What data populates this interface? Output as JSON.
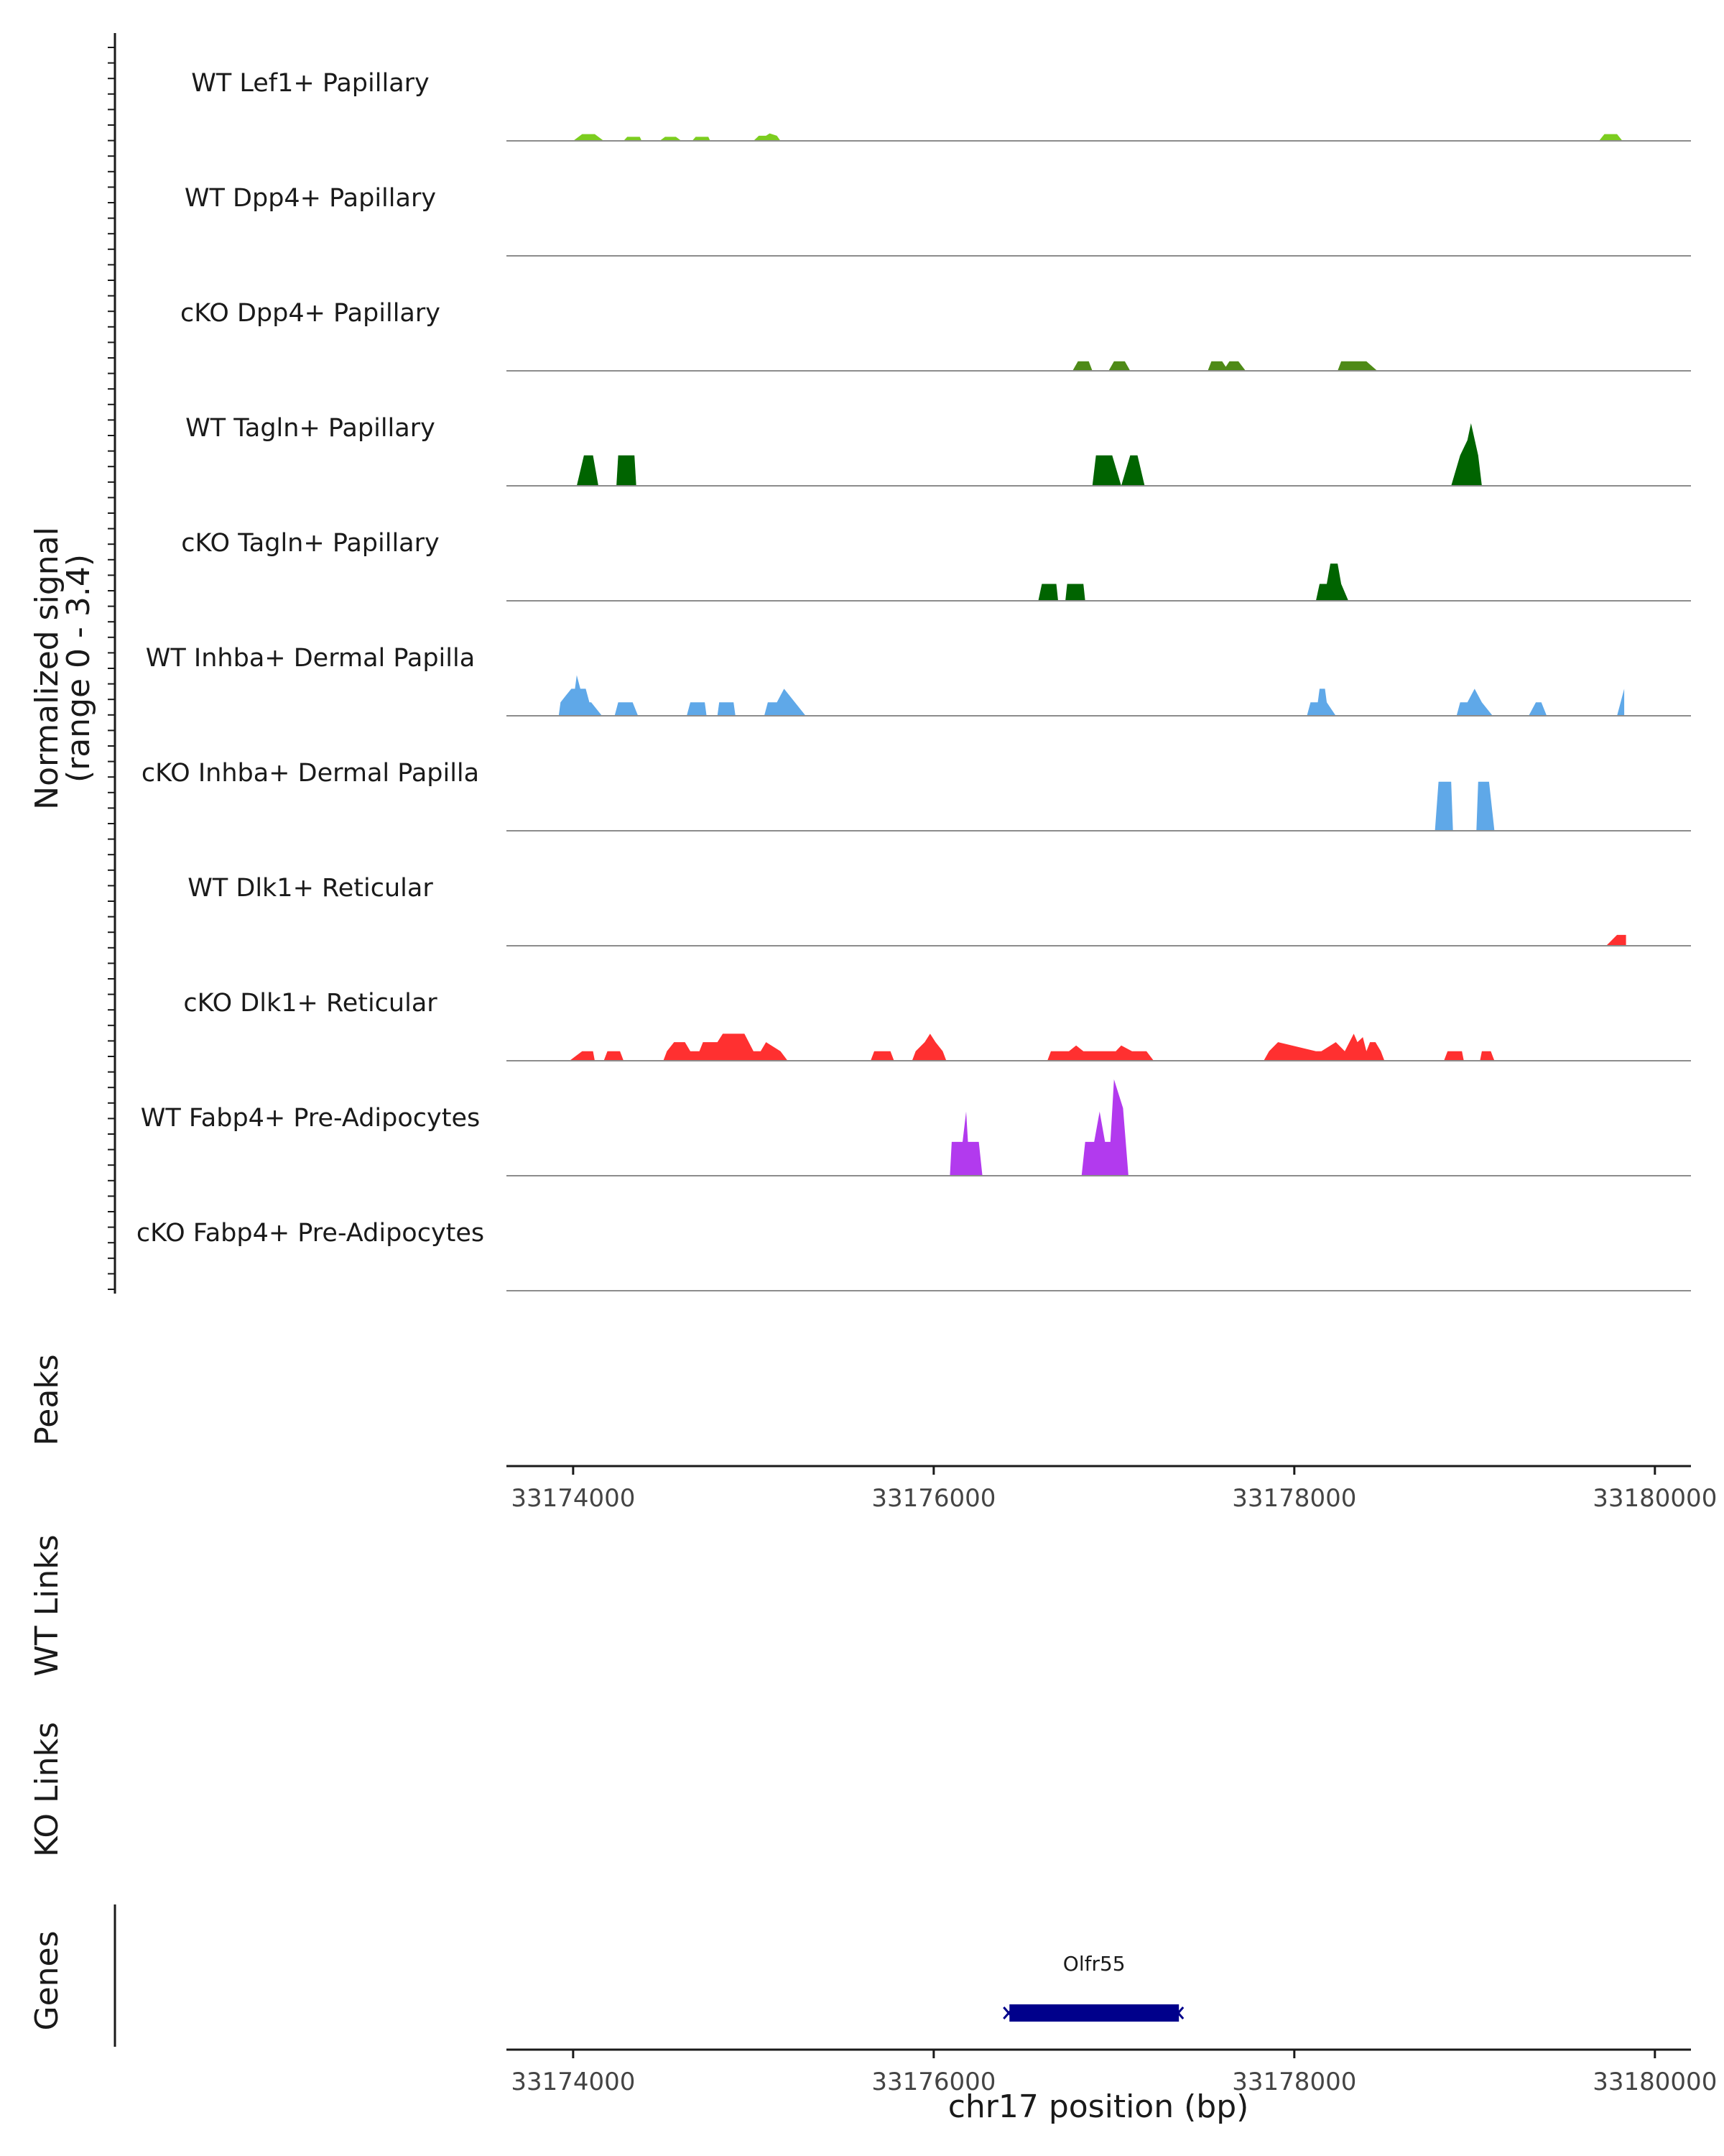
{
  "chart_data": {
    "type": "area",
    "title": "",
    "chromosome": "chr17",
    "xlabel": "chr17 position (bp)",
    "xlim": [
      33173630,
      33180200
    ],
    "xticks": [
      33174000,
      33176000,
      33178000,
      33180000
    ],
    "xtick_labels": [
      "33174000",
      "33176000",
      "33178000",
      "33180000"
    ],
    "ylabel_line1": "Normalized signal",
    "ylabel_line2": "(range 0 - 3.4)",
    "ylim": [
      0,
      3.4
    ],
    "tracks": [
      {
        "name": "WT Lef1+ Papillary",
        "color": "#7ccd1f",
        "segments": [
          {
            "x": [
              33174000,
              33174050,
              33174120,
              33174170
            ],
            "y": [
              0,
              0.2,
              0.2,
              0
            ]
          },
          {
            "x": [
              33174280,
              33174300,
              33174370,
              33174380
            ],
            "y": [
              0,
              0.12,
              0.12,
              0
            ]
          },
          {
            "x": [
              33174480,
              33174510,
              33174570,
              33174600
            ],
            "y": [
              0,
              0.12,
              0.12,
              0
            ]
          },
          {
            "x": [
              33174660,
              33174680,
              33174750,
              33174760
            ],
            "y": [
              0,
              0.12,
              0.12,
              0
            ]
          },
          {
            "x": [
              33175000,
              33175030,
              33175070,
              33175090,
              33175130,
              33175150
            ],
            "y": [
              0,
              0.15,
              0.15,
              0.22,
              0.15,
              0
            ]
          },
          {
            "x": [
              33179690,
              33179720,
              33179790,
              33179820
            ],
            "y": [
              0,
              0.2,
              0.2,
              0
            ]
          }
        ]
      },
      {
        "name": "WT Dpp4+ Papillary",
        "color": "#4e8a17",
        "segments": []
      },
      {
        "name": "cKO Dpp4+ Papillary",
        "color": "#4e8a17",
        "segments": [
          {
            "x": [
              33176770,
              33176800,
              33176860,
              33176880
            ],
            "y": [
              0,
              0.28,
              0.28,
              0
            ]
          },
          {
            "x": [
              33176970,
              33177000,
              33177060,
              33177090
            ],
            "y": [
              0,
              0.28,
              0.28,
              0
            ]
          },
          {
            "x": [
              33177520,
              33177540,
              33177600,
              33177620,
              33177640,
              33177690,
              33177730
            ],
            "y": [
              0,
              0.28,
              0.28,
              0.12,
              0.28,
              0.28,
              0
            ]
          },
          {
            "x": [
              33178240,
              33178260,
              33178400,
              33178460
            ],
            "y": [
              0,
              0.28,
              0.28,
              0
            ]
          }
        ]
      },
      {
        "name": "WT Tagln+ Papillary",
        "color": "#006400",
        "segments": [
          {
            "x": [
              33174020,
              33174060,
              33174110,
              33174140
            ],
            "y": [
              0,
              0.9,
              0.9,
              0
            ]
          },
          {
            "x": [
              33174240,
              33174250,
              33174340,
              33174350
            ],
            "y": [
              0,
              0.9,
              0.9,
              0
            ]
          },
          {
            "x": [
              33176880,
              33176900,
              33176990,
              33177040
            ],
            "y": [
              0,
              0.9,
              0.9,
              0
            ]
          },
          {
            "x": [
              33177040,
              33177090,
              33177130,
              33177170
            ],
            "y": [
              0,
              0.9,
              0.9,
              0
            ]
          },
          {
            "x": [
              33178870,
              33178920,
              33178960,
              33178980,
              33179020,
              33179040
            ],
            "y": [
              0,
              0.9,
              1.35,
              1.85,
              0.9,
              0
            ]
          }
        ]
      },
      {
        "name": "cKO Tagln+ Papillary",
        "color": "#006400",
        "segments": [
          {
            "x": [
              33176580,
              33176600,
              33176680,
              33176690
            ],
            "y": [
              0,
              0.5,
              0.5,
              0
            ]
          },
          {
            "x": [
              33176730,
              33176740,
              33176830,
              33176840
            ],
            "y": [
              0,
              0.5,
              0.5,
              0
            ]
          },
          {
            "x": [
              33178120,
              33178140,
              33178180,
              33178200,
              33178240,
              33178260,
              33178300
            ],
            "y": [
              0,
              0.5,
              0.5,
              1.1,
              1.1,
              0.5,
              0
            ]
          }
        ]
      },
      {
        "name": "WT Inhba+ Dermal Papilla",
        "color": "#5fa8e8",
        "segments": [
          {
            "x": [
              33173920,
              33173930,
              33173960,
              33173990,
              33174010,
              33174020,
              33174040,
              33174070,
              33174090,
              33174100,
              33174160
            ],
            "y": [
              0,
              0.4,
              0.6,
              0.8,
              0.8,
              1.2,
              0.8,
              0.8,
              0.4,
              0.4,
              0
            ]
          },
          {
            "x": [
              33174230,
              33174250,
              33174330,
              33174360
            ],
            "y": [
              0,
              0.4,
              0.4,
              0
            ]
          },
          {
            "x": [
              33174630,
              33174650,
              33174730,
              33174740
            ],
            "y": [
              0,
              0.4,
              0.4,
              0
            ]
          },
          {
            "x": [
              33174800,
              33174810,
              33174890,
              33174900
            ],
            "y": [
              0,
              0.4,
              0.4,
              0
            ]
          },
          {
            "x": [
              33175060,
              33175080,
              33175130,
              33175170,
              33175230,
              33175290
            ],
            "y": [
              0,
              0.4,
              0.4,
              0.8,
              0.4,
              0
            ]
          },
          {
            "x": [
              33178070,
              33178090,
              33178130,
              33178140,
              33178170,
              33178180,
              33178230
            ],
            "y": [
              0,
              0.4,
              0.4,
              0.8,
              0.8,
              0.4,
              0
            ]
          },
          {
            "x": [
              33178900,
              33178920,
              33178960,
              33179000,
              33179040,
              33179100
            ],
            "y": [
              0,
              0.4,
              0.4,
              0.8,
              0.4,
              0
            ]
          },
          {
            "x": [
              33179300,
              33179340,
              33179370,
              33179400
            ],
            "y": [
              0,
              0.4,
              0.4,
              0
            ]
          },
          {
            "x": [
              33179790,
              33179830
            ],
            "y": [
              0,
              0.8
            ]
          }
        ]
      },
      {
        "name": "cKO Inhba+ Dermal Papilla",
        "color": "#5fa8e8",
        "segments": [
          {
            "x": [
              33178780,
              33178800,
              33178870,
              33178880
            ],
            "y": [
              0,
              1.45,
              1.45,
              0
            ]
          },
          {
            "x": [
              33179010,
              33179020,
              33179080,
              33179110
            ],
            "y": [
              0,
              1.45,
              1.45,
              0
            ]
          }
        ]
      },
      {
        "name": "WT Dlk1+ Reticular",
        "color": "#ff3030",
        "segments": [
          {
            "x": [
              33179730,
              33179790,
              33179840,
              33179840
            ],
            "y": [
              0,
              0.32,
              0.32,
              0
            ]
          }
        ]
      },
      {
        "name": "cKO Dlk1+ Reticular",
        "color": "#ff3030",
        "segments": [
          {
            "x": [
              33173980,
              33174050,
              33174110,
              33174120
            ],
            "y": [
              0,
              0.28,
              0.28,
              0
            ]
          },
          {
            "x": [
              33174170,
              33174190,
              33174260,
              33174280
            ],
            "y": [
              0,
              0.28,
              0.28,
              0
            ]
          },
          {
            "x": [
              33174500,
              33174520,
              33174560,
              33174620,
              33174650,
              33174680,
              33174700,
              33174720,
              33174750,
              33174800,
              33174830,
              33174870,
              33174950,
              33175000,
              33175040,
              33175070,
              33175150,
              33175190
            ],
            "y": [
              0,
              0.28,
              0.55,
              0.55,
              0.28,
              0.28,
              0.28,
              0.55,
              0.55,
              0.55,
              0.8,
              0.8,
              0.8,
              0.28,
              0.28,
              0.55,
              0.28,
              0
            ]
          },
          {
            "x": [
              33175650,
              33175670,
              33175760,
              33175780
            ],
            "y": [
              0,
              0.28,
              0.28,
              0
            ]
          },
          {
            "x": [
              33175880,
              33175900,
              33175950,
              33175980,
              33176010,
              33176050,
              33176070
            ],
            "y": [
              0,
              0.28,
              0.55,
              0.8,
              0.55,
              0.28,
              0
            ]
          },
          {
            "x": [
              33176630,
              33176650,
              33176720,
              33176750,
              33176790,
              33176830,
              33176900,
              33177010,
              33177040,
              33177100,
              33177120,
              33177180,
              33177220
            ],
            "y": [
              0,
              0.28,
              0.28,
              0.28,
              0.45,
              0.28,
              0.28,
              0.28,
              0.45,
              0.28,
              0.28,
              0.28,
              0
            ]
          },
          {
            "x": [
              33177830,
              33177860,
              33177910,
              33178120,
              33178150,
              33178230,
              33178280,
              33178330,
              33178350,
              33178380,
              33178400,
              33178420,
              33178450,
              33178480,
              33178500
            ],
            "y": [
              0,
              0.28,
              0.55,
              0.28,
              0.28,
              0.55,
              0.28,
              0.8,
              0.55,
              0.7,
              0.28,
              0.55,
              0.55,
              0.28,
              0
            ]
          },
          {
            "x": [
              33178830,
              33178850,
              33178930,
              33178940
            ],
            "y": [
              0,
              0.28,
              0.28,
              0
            ]
          },
          {
            "x": [
              33179030,
              33179040,
              33179090,
              33179110
            ],
            "y": [
              0,
              0.28,
              0.28,
              0
            ]
          }
        ]
      },
      {
        "name": "WT Fabp4+ Pre-Adipocytes",
        "color": "#b23aee",
        "segments": [
          {
            "x": [
              33176090,
              33176100,
              33176160,
              33176180,
              33176190,
              33176250,
              33176270
            ],
            "y": [
              0,
              1.0,
              1.0,
              1.9,
              1.0,
              1.0,
              0
            ]
          },
          {
            "x": [
              33176820,
              33176840,
              33176890,
              33176920,
              33176950,
              33176980,
              33177000,
              33177050,
              33177080
            ],
            "y": [
              0,
              1.0,
              1.0,
              1.9,
              1.0,
              1.0,
              2.85,
              2.0,
              0
            ]
          }
        ]
      },
      {
        "name": "cKO Fabp4+ Pre-Adipocytes",
        "color": "#b23aee",
        "segments": []
      }
    ],
    "peaks_label": "Peaks",
    "peaks": [],
    "wt_links_label": "WT Links",
    "wt_links": [],
    "ko_links_label": "KO Links",
    "ko_links": [],
    "genes_label": "Genes",
    "genes": [
      {
        "name": "Olfr55",
        "start": 33176420,
        "end": 33177360,
        "strand": "-",
        "color": "#00008b"
      }
    ]
  }
}
